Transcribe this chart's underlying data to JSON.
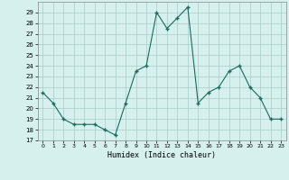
{
  "x": [
    0,
    1,
    2,
    3,
    4,
    5,
    6,
    7,
    8,
    9,
    10,
    11,
    12,
    13,
    14,
    15,
    16,
    17,
    18,
    19,
    20,
    21,
    22,
    23
  ],
  "y": [
    21.5,
    20.5,
    19.0,
    18.5,
    18.5,
    18.5,
    18.0,
    17.5,
    20.5,
    23.5,
    24.0,
    29.0,
    27.5,
    28.5,
    29.5,
    20.5,
    21.5,
    22.0,
    23.5,
    24.0,
    22.0,
    21.0,
    19.0,
    19.0
  ],
  "line_color": "#1a6b5a",
  "marker": "+",
  "marker_size": 3.5,
  "bg_color": "#d6f0ee",
  "grid_color": "#a8ccc8",
  "xlabel": "Humidex (Indice chaleur)",
  "ylim": [
    17,
    30
  ],
  "yticks": [
    17,
    18,
    19,
    20,
    21,
    22,
    23,
    24,
    25,
    26,
    27,
    28,
    29
  ],
  "xticks": [
    0,
    1,
    2,
    3,
    4,
    5,
    6,
    7,
    8,
    9,
    10,
    11,
    12,
    13,
    14,
    15,
    16,
    17,
    18,
    19,
    20,
    21,
    22,
    23
  ],
  "xlim": [
    -0.5,
    23.5
  ]
}
